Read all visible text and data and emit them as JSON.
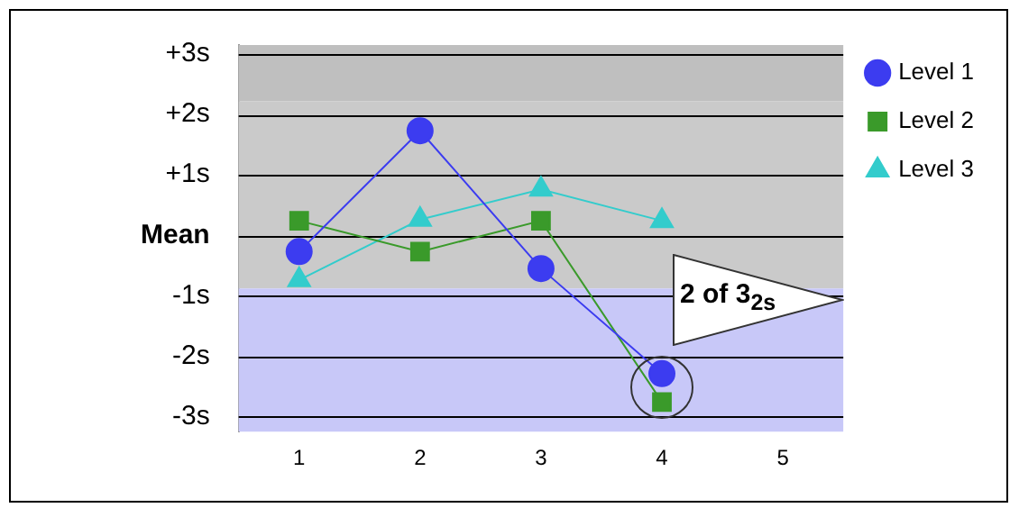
{
  "chart_data": {
    "type": "line",
    "categories": [
      "1",
      "2",
      "3",
      "4",
      "5"
    ],
    "series": [
      {
        "name": "Level 1",
        "color": "#3c3cf0",
        "marker": "circle",
        "values": [
          -0.27,
          1.73,
          -0.55,
          -2.29,
          null
        ]
      },
      {
        "name": "Level 2",
        "color": "#3a9a2a",
        "marker": "square",
        "values": [
          0.24,
          -0.27,
          0.24,
          -2.76,
          null
        ]
      },
      {
        "name": "Level 3",
        "color": "#33cccc",
        "marker": "triangle",
        "values": [
          -0.74,
          0.26,
          0.76,
          0.24,
          null
        ]
      }
    ],
    "ylim": [
      -3.25,
      3.15
    ],
    "yticks": [
      {
        "value": -3,
        "label": "-3s"
      },
      {
        "value": -2,
        "label": "-2s"
      },
      {
        "value": -1,
        "label": "-1s"
      },
      {
        "value": 0,
        "label": "Mean"
      },
      {
        "value": 1,
        "label": "+1s"
      },
      {
        "value": 2,
        "label": "+2s"
      },
      {
        "value": 3,
        "label": "+3s"
      }
    ],
    "bands": [
      {
        "axis": "y",
        "from": 2.22,
        "to": 3.15,
        "color": "#bfbfbf"
      },
      {
        "axis": "y",
        "from": -0.88,
        "to": 2.22,
        "color": "#cacaca"
      },
      {
        "axis": "y",
        "from": -3.25,
        "to": -0.88,
        "color": "#c8c8f8"
      }
    ],
    "annotations": [
      "2 of 3$_{2s}$"
    ],
    "grid": "y",
    "legend": "top right"
  }
}
